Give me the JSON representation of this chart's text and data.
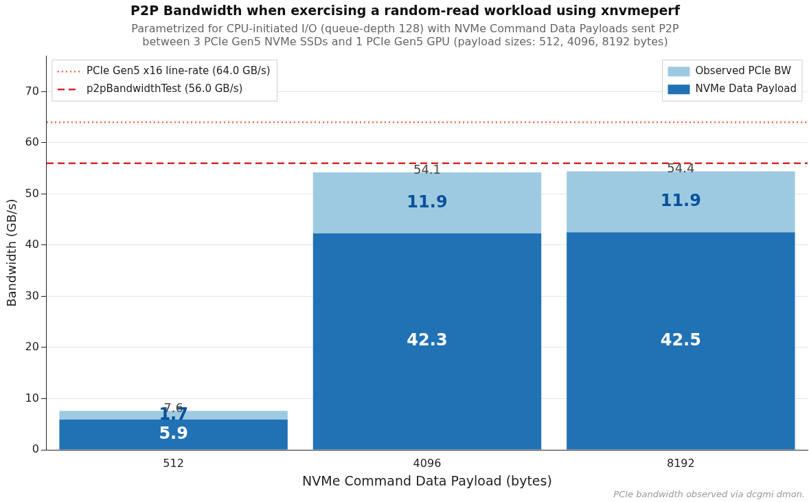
{
  "chart_data": {
    "type": "bar",
    "title": "P2P Bandwidth when exercising a random-read workload using xnvmeperf",
    "subtitle": "Parametrized for CPU-initiated I/O (queue-depth 128) with NVMe Command Data Payloads sent P2P\nbetween 3 PCIe Gen5 NVMe SSDs and 1 PCIe Gen5 GPU (payload sizes: 512, 4096, 8192 bytes)",
    "xlabel": "NVMe Command Data Payload (bytes)",
    "ylabel": "Bandwidth (GB/s)",
    "categories": [
      "512",
      "4096",
      "8192"
    ],
    "stacked": true,
    "series": [
      {
        "name": "NVMe Data Payload",
        "color": "#2171b5",
        "values": [
          5.9,
          42.3,
          42.5
        ]
      },
      {
        "name": "Observed PCIe BW",
        "color": "#9ecae1",
        "values": [
          1.7,
          11.9,
          11.9
        ]
      }
    ],
    "totals": [
      "7.6",
      "54.1",
      "54.4"
    ],
    "data_labels": true,
    "ylim": [
      0,
      77
    ],
    "yticks": [
      0,
      10,
      20,
      30,
      40,
      50,
      60,
      70
    ],
    "grid": "y",
    "legend": "top right",
    "ref_lines": [
      {
        "axis": "y",
        "value": 64,
        "label": "PCIe Gen5 x16 line-rate (64.0 GB/s)",
        "color": "#fb6a4a",
        "line_style": "dotted"
      },
      {
        "axis": "y",
        "value": 56,
        "label": "p2pBandwidthTest (56.0 GB/s)",
        "color": "#d62728",
        "line_style": "dashed"
      }
    ],
    "annotations": [
      "PCIe bandwidth observed via dcgmi dmon."
    ]
  }
}
